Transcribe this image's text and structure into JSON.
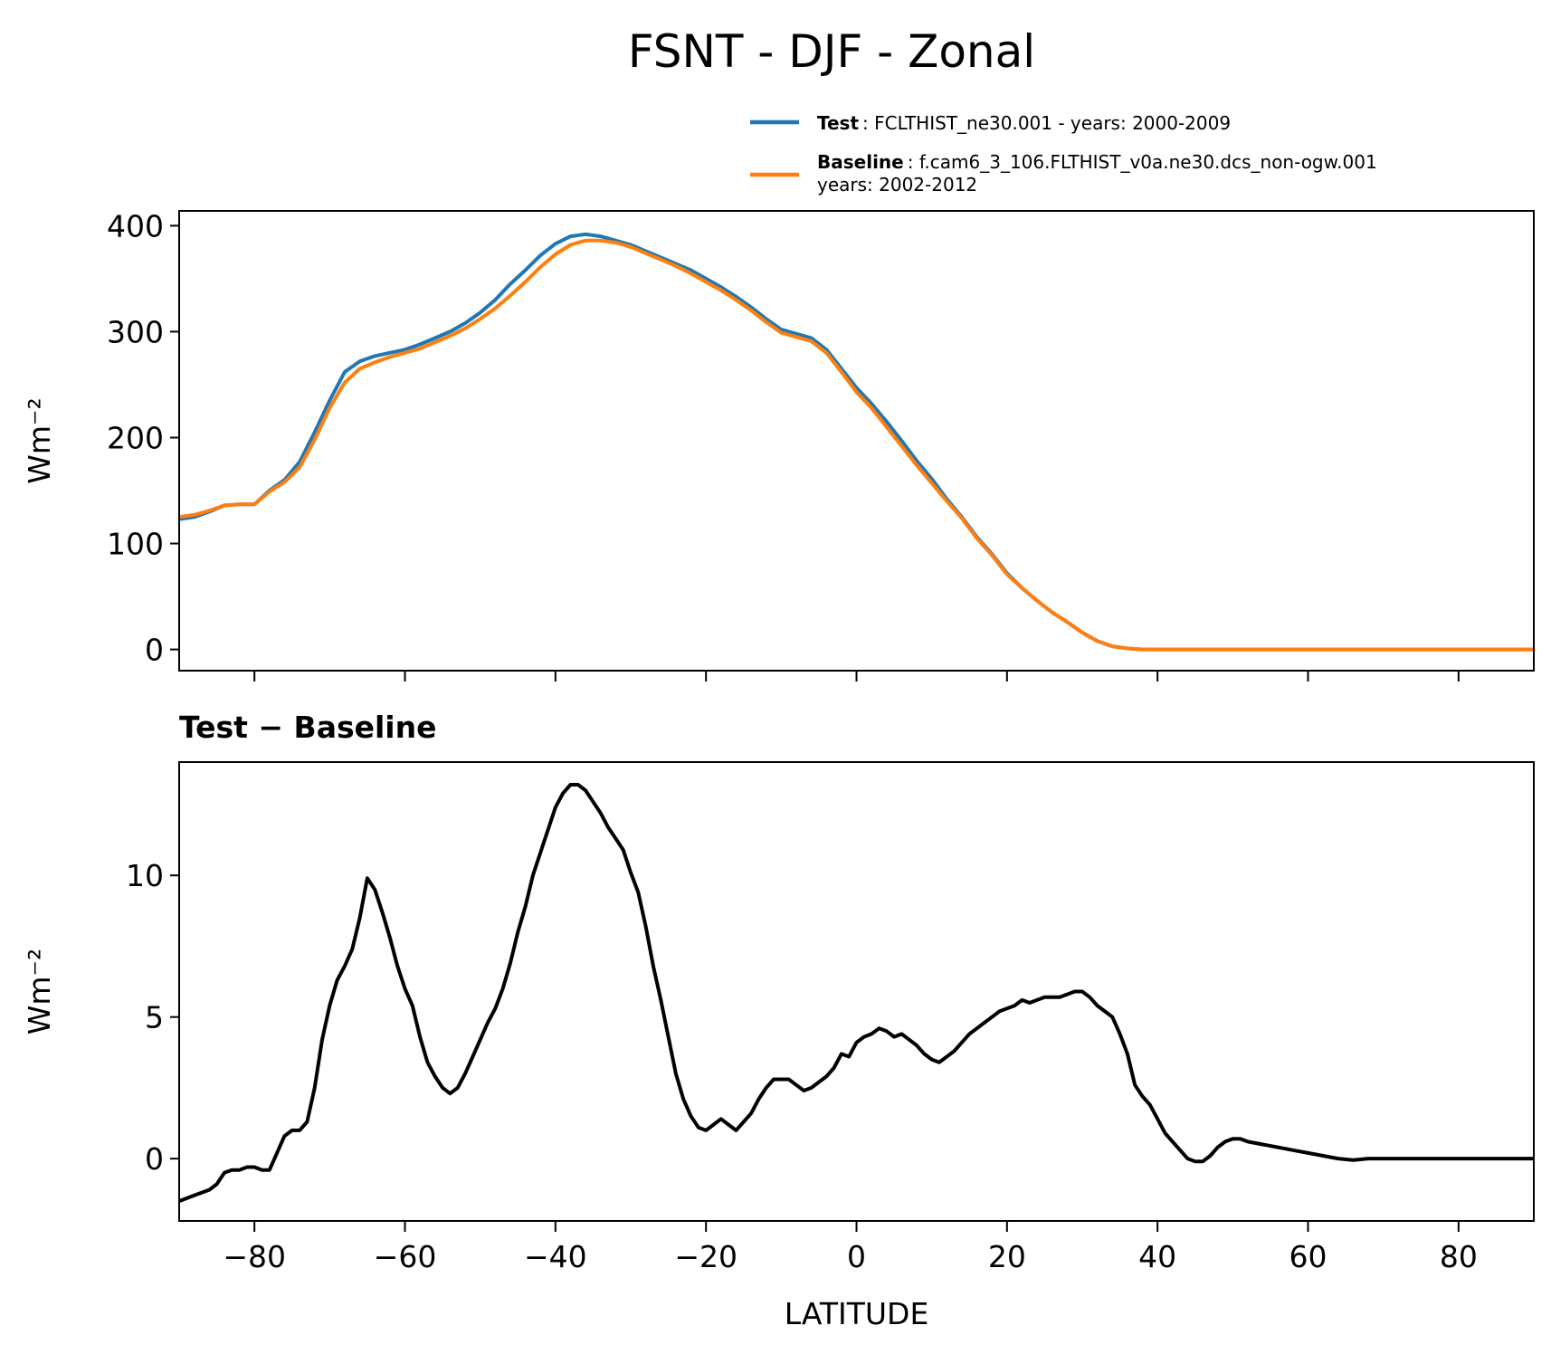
{
  "figure": {
    "title": "FSNT - DJF - Zonal"
  },
  "legend": {
    "placement": "upper-right-above-plot",
    "entries": [
      {
        "key": "Test",
        "text": ": FCLTHIST_ne30.001 - years: 2000-2009",
        "color": "#1f77b4"
      },
      {
        "key": "Baseline",
        "text": ": f.cam6_3_106.FLTHIST_v0a.ne30.dcs_non-ogw.001",
        "text2": "years: 2002-2012",
        "color": "#ff7f0e"
      }
    ]
  },
  "chart_data": [
    {
      "type": "line",
      "title": "",
      "xlabel": "",
      "ylabel": "Wm⁻²",
      "xlim": [
        -90,
        90
      ],
      "ylim": [
        -20,
        414
      ],
      "yticks": [
        0,
        100,
        200,
        300,
        400
      ],
      "xticks": [
        -80,
        -60,
        -40,
        -20,
        0,
        20,
        40,
        60,
        80
      ],
      "x_tick_labels_shown": false,
      "grid": false,
      "series": [
        {
          "name": "Test",
          "color": "#1f77b4",
          "x": [
            -90,
            -88,
            -86,
            -84,
            -82,
            -80,
            -78,
            -76,
            -74,
            -72,
            -70,
            -68,
            -66,
            -64,
            -62,
            -60,
            -58,
            -56,
            -54,
            -52,
            -50,
            -48,
            -46,
            -44,
            -42,
            -40,
            -38,
            -36,
            -34,
            -32,
            -30,
            -28,
            -26,
            -24,
            -22,
            -20,
            -18,
            -16,
            -14,
            -12,
            -10,
            -8,
            -6,
            -4,
            -2,
            0,
            2,
            4,
            6,
            8,
            10,
            12,
            14,
            16,
            18,
            20,
            22,
            24,
            26,
            28,
            30,
            32,
            34,
            36,
            38,
            40,
            42,
            44,
            46,
            48,
            50,
            52,
            54,
            56,
            58,
            60,
            62,
            64,
            66,
            68,
            70,
            72,
            74,
            76,
            78,
            80,
            82,
            84,
            86,
            88,
            90
          ],
          "y": [
            123,
            125,
            130,
            136,
            137,
            137,
            150,
            160,
            177,
            205,
            235,
            262,
            272,
            277,
            280,
            283,
            288,
            294,
            300,
            308,
            318,
            330,
            345,
            358,
            372,
            383,
            390,
            392,
            390,
            386,
            382,
            376,
            370,
            364,
            358,
            350,
            342,
            333,
            323,
            312,
            302,
            298,
            294,
            283,
            265,
            247,
            232,
            215,
            197,
            178,
            161,
            142,
            125,
            106,
            90,
            72,
            58,
            46,
            35,
            26,
            16,
            8,
            3,
            1,
            0,
            0,
            0,
            0,
            0,
            0,
            0,
            0,
            0,
            0,
            0,
            0,
            0,
            0,
            0,
            0,
            0,
            0,
            0,
            0,
            0,
            0,
            0,
            0,
            0,
            0,
            0
          ]
        },
        {
          "name": "Baseline",
          "color": "#ff7f0e",
          "x": [
            -90,
            -88,
            -86,
            -84,
            -82,
            -80,
            -78,
            -76,
            -74,
            -72,
            -70,
            -68,
            -66,
            -64,
            -62,
            -60,
            -58,
            -56,
            -54,
            -52,
            -50,
            -48,
            -46,
            -44,
            -42,
            -40,
            -38,
            -36,
            -34,
            -32,
            -30,
            -28,
            -26,
            -24,
            -22,
            -20,
            -18,
            -16,
            -14,
            -12,
            -10,
            -8,
            -6,
            -4,
            -2,
            0,
            2,
            4,
            6,
            8,
            10,
            12,
            14,
            16,
            18,
            20,
            22,
            24,
            26,
            28,
            30,
            32,
            34,
            36,
            38,
            40,
            42,
            44,
            46,
            48,
            50,
            52,
            54,
            56,
            58,
            60,
            62,
            64,
            66,
            68,
            70,
            72,
            74,
            76,
            78,
            80,
            82,
            84,
            86,
            88,
            90
          ],
          "y": [
            125,
            127,
            131,
            136,
            137,
            137,
            149,
            158,
            172,
            198,
            228,
            252,
            265,
            271,
            276,
            280,
            284,
            290,
            296,
            303,
            312,
            322,
            334,
            347,
            361,
            373,
            382,
            386,
            386,
            384,
            380,
            374,
            368,
            362,
            355,
            347,
            339,
            330,
            320,
            309,
            299,
            295,
            291,
            280,
            262,
            243,
            228,
            210,
            192,
            174,
            157,
            140,
            124,
            105,
            89,
            71,
            58,
            46,
            35,
            26,
            16,
            8,
            3,
            1,
            0,
            0,
            0,
            0,
            0,
            0,
            0,
            0,
            0,
            0,
            0,
            0,
            0,
            0,
            0,
            0,
            0,
            0,
            0,
            0,
            0,
            0,
            0,
            0,
            0,
            0,
            0
          ]
        }
      ]
    },
    {
      "type": "line",
      "title": "Test − Baseline",
      "xlabel": "LATITUDE",
      "ylabel": "Wm⁻²",
      "xlim": [
        -90,
        90
      ],
      "ylim": [
        -2.2,
        14
      ],
      "yticks": [
        0,
        5,
        10
      ],
      "xticks": [
        -80,
        -60,
        -40,
        -20,
        0,
        20,
        40,
        60,
        80
      ],
      "x_tick_labels": [
        "−80",
        "−60",
        "−40",
        "−20",
        "0",
        "20",
        "40",
        "60",
        "80"
      ],
      "grid": false,
      "series": [
        {
          "name": "",
          "color": "#000000",
          "x": [
            -90,
            -88,
            -86,
            -85,
            -84,
            -83,
            -82,
            -81,
            -80,
            -79,
            -78,
            -77,
            -76,
            -75,
            -74,
            -73,
            -72,
            -71,
            -70,
            -69,
            -68,
            -67,
            -66,
            -65,
            -64,
            -63,
            -62,
            -61,
            -60,
            -59,
            -58,
            -57,
            -56,
            -55,
            -54,
            -53,
            -52,
            -51,
            -50,
            -49,
            -48,
            -47,
            -46,
            -45,
            -44,
            -43,
            -42,
            -41,
            -40,
            -39,
            -38,
            -37,
            -36,
            -35,
            -34,
            -33,
            -32,
            -31,
            -30,
            -29,
            -28,
            -27,
            -26,
            -25,
            -24,
            -23,
            -22,
            -21,
            -20,
            -19,
            -18,
            -17,
            -16,
            -15,
            -14,
            -13,
            -12,
            -11,
            -10,
            -9,
            -8,
            -7,
            -6,
            -5,
            -4,
            -3,
            -2,
            -1,
            0,
            1,
            2,
            3,
            4,
            5,
            6,
            7,
            8,
            9,
            10,
            11,
            12,
            13,
            14,
            15,
            16,
            17,
            18,
            19,
            20,
            21,
            22,
            23,
            24,
            25,
            26,
            27,
            28,
            29,
            30,
            31,
            32,
            33,
            34,
            35,
            36,
            37,
            38,
            39,
            40,
            41,
            42,
            43,
            44,
            45,
            46,
            47,
            48,
            49,
            50,
            51,
            52,
            54,
            56,
            58,
            60,
            62,
            64,
            66,
            68,
            70,
            72,
            76,
            80,
            85,
            90
          ],
          "y": [
            -1.5,
            -1.3,
            -1.1,
            -0.9,
            -0.5,
            -0.4,
            -0.4,
            -0.3,
            -0.3,
            -0.4,
            -0.4,
            0.2,
            0.8,
            1.0,
            1.0,
            1.3,
            2.5,
            4.2,
            5.4,
            6.3,
            6.8,
            7.4,
            8.5,
            9.9,
            9.5,
            8.7,
            7.8,
            6.8,
            6.0,
            5.4,
            4.3,
            3.4,
            2.9,
            2.5,
            2.3,
            2.5,
            3.0,
            3.6,
            4.2,
            4.8,
            5.3,
            6.0,
            6.9,
            8.0,
            8.9,
            10.0,
            10.8,
            11.6,
            12.4,
            12.9,
            13.2,
            13.2,
            13.0,
            12.6,
            12.2,
            11.7,
            11.3,
            10.9,
            10.1,
            9.4,
            8.2,
            6.8,
            5.6,
            4.3,
            3.0,
            2.1,
            1.5,
            1.1,
            1.0,
            1.2,
            1.4,
            1.2,
            1.0,
            1.3,
            1.6,
            2.1,
            2.5,
            2.8,
            2.8,
            2.8,
            2.6,
            2.4,
            2.5,
            2.7,
            2.9,
            3.2,
            3.7,
            3.6,
            4.1,
            4.3,
            4.4,
            4.6,
            4.5,
            4.3,
            4.4,
            4.2,
            4.0,
            3.7,
            3.5,
            3.4,
            3.6,
            3.8,
            4.1,
            4.4,
            4.6,
            4.8,
            5.0,
            5.2,
            5.3,
            5.4,
            5.6,
            5.5,
            5.6,
            5.7,
            5.7,
            5.7,
            5.8,
            5.9,
            5.9,
            5.7,
            5.4,
            5.2,
            5.0,
            4.4,
            3.7,
            2.6,
            2.2,
            1.9,
            1.4,
            0.9,
            0.6,
            0.3,
            0.0,
            -0.1,
            -0.1,
            0.1,
            0.4,
            0.6,
            0.7,
            0.7,
            0.6,
            0.5,
            0.4,
            0.3,
            0.2,
            0.1,
            0.0,
            -0.05,
            0.0,
            0.0,
            0.0,
            0.0,
            0.0,
            0.0,
            0.0
          ]
        }
      ]
    }
  ]
}
